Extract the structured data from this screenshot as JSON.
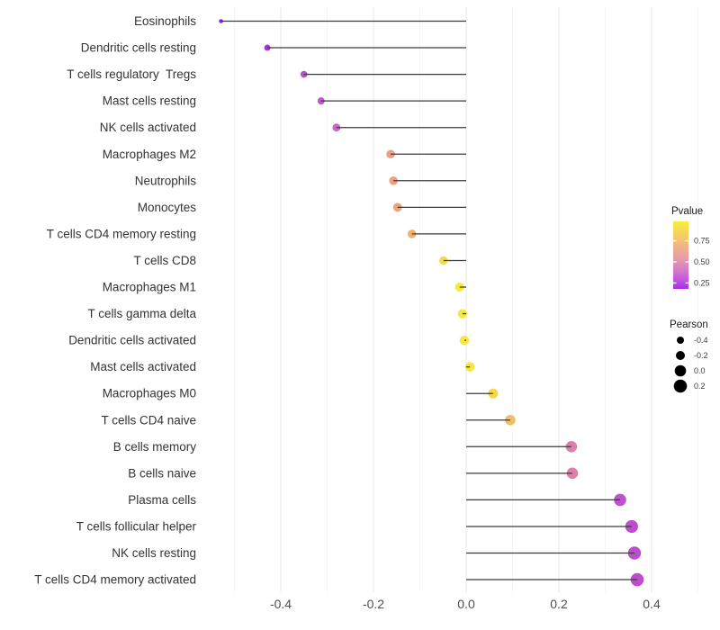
{
  "chart_data": {
    "type": "lollipop",
    "title": "",
    "xlabel": "",
    "ylabel": "",
    "xlim": [
      -0.56,
      0.54
    ],
    "x_ticks": [
      -0.4,
      -0.2,
      0.0,
      0.2,
      0.4
    ],
    "x_tick_labels": [
      "-0.4",
      "-0.2",
      "0.0",
      "0.2",
      "0.4"
    ],
    "x_minor_ticks": [
      -0.5,
      -0.3,
      -0.1,
      0.1,
      0.3,
      0.5
    ],
    "grid": "vertical-only",
    "stem_color": "#3a3a3a",
    "points": [
      {
        "label": "Eosinophils",
        "pearson": -0.529,
        "color": "#8826DE",
        "size": 4.6
      },
      {
        "label": "Dendritic cells resting",
        "pearson": -0.429,
        "color": "#A637DC",
        "size": 7.0
      },
      {
        "label": "T cells regulatory  Tregs",
        "pearson": -0.35,
        "color": "#B84FD0",
        "size": 7.6
      },
      {
        "label": "Mast cells resting",
        "pearson": -0.313,
        "color": "#C058CC",
        "size": 8.0
      },
      {
        "label": "NK cells activated",
        "pearson": -0.28,
        "color": "#C867C6",
        "size": 8.8
      },
      {
        "label": "Macrophages M2",
        "pearson": -0.163,
        "color": "#ECA184",
        "size": 9.6
      },
      {
        "label": "Neutrophils",
        "pearson": -0.157,
        "color": "#ECA184",
        "size": 9.6
      },
      {
        "label": "Monocytes",
        "pearson": -0.148,
        "color": "#EDA379",
        "size": 9.8
      },
      {
        "label": "T cells CD4 memory resting",
        "pearson": -0.117,
        "color": "#EFB070",
        "size": 9.6
      },
      {
        "label": "T cells CD8",
        "pearson": -0.049,
        "color": "#F3DA49",
        "size": 9.4
      },
      {
        "label": "Macrophages M1",
        "pearson": -0.014,
        "color": "#F6E93B",
        "size": 10.0
      },
      {
        "label": "T cells gamma delta",
        "pearson": -0.008,
        "color": "#F6E93B",
        "size": 10.4
      },
      {
        "label": "Dendritic cells activated",
        "pearson": -0.004,
        "color": "#F6E93B",
        "size": 10.4
      },
      {
        "label": "Mast cells activated",
        "pearson": 0.008,
        "color": "#F5E73C",
        "size": 10.6
      },
      {
        "label": "Macrophages M0",
        "pearson": 0.058,
        "color": "#F3D84C",
        "size": 11.0
      },
      {
        "label": "T cells CD4 naive",
        "pearson": 0.095,
        "color": "#EFC05F",
        "size": 11.6
      },
      {
        "label": "B cells memory",
        "pearson": 0.227,
        "color": "#DE7FA8",
        "size": 12.6
      },
      {
        "label": "B cells naive",
        "pearson": 0.229,
        "color": "#DE7FA8",
        "size": 12.6
      },
      {
        "label": "Plasma cells",
        "pearson": 0.332,
        "color": "#BE52CE",
        "size": 13.6
      },
      {
        "label": "T cells follicular helper",
        "pearson": 0.357,
        "color": "#BC4ECE",
        "size": 14.2
      },
      {
        "label": "NK cells resting",
        "pearson": 0.363,
        "color": "#BC4ECE",
        "size": 14.4
      },
      {
        "label": "T cells CD4 memory activated",
        "pearson": 0.369,
        "color": "#BC4ECE",
        "size": 14.6
      }
    ],
    "legend_pvalue": {
      "title": "Pvalue",
      "ticks": [
        {
          "label": "0.75",
          "value": 0.75
        },
        {
          "label": "0.50",
          "value": 0.5
        },
        {
          "label": "0.25",
          "value": 0.25
        }
      ],
      "limits_top_bottom": [
        0.98,
        0.18
      ],
      "gradient_top_to_bottom": [
        {
          "offset": 0.0,
          "color": "#F9EE3A"
        },
        {
          "offset": 0.2,
          "color": "#F5CF66"
        },
        {
          "offset": 0.4,
          "color": "#EFAF8C"
        },
        {
          "offset": 0.55,
          "color": "#E89BA8"
        },
        {
          "offset": 0.7,
          "color": "#DA7FC4"
        },
        {
          "offset": 0.85,
          "color": "#C55BDE"
        },
        {
          "offset": 1.0,
          "color": "#A82FEA"
        }
      ]
    },
    "legend_pearson": {
      "title": "Pearson",
      "entries": [
        {
          "label": "-0.4",
          "size": 8.0
        },
        {
          "label": "-0.2",
          "size": 10.0
        },
        {
          "label": "0.0",
          "size": 12.6
        },
        {
          "label": "0.2",
          "size": 14.6
        }
      ],
      "dot_color": "#000000"
    }
  }
}
